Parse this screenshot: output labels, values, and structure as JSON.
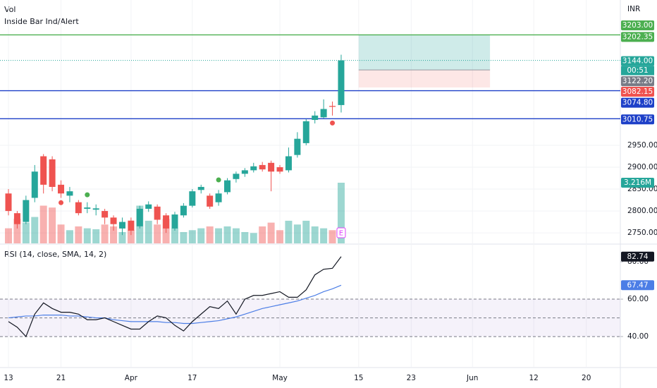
{
  "chart_data": {
    "type": "candlestick",
    "indicators": [
      "Vol",
      "Inside Bar Ind/Alert"
    ],
    "currency": "INR",
    "grid": true,
    "up_color": "#26a69a",
    "down_color": "#ef5350",
    "ylim": [
      2726,
      3282
    ],
    "yticks": [
      {
        "value": 2750,
        "label": "2750.00"
      },
      {
        "value": 2800,
        "label": "2800.00"
      },
      {
        "value": 2850,
        "label": "2850.00"
      },
      {
        "value": 2900,
        "label": "2900.00"
      },
      {
        "value": 2950,
        "label": "2950.00"
      }
    ],
    "xticks": [
      {
        "value": 0,
        "label": "13"
      },
      {
        "value": 6,
        "label": "21"
      },
      {
        "value": 14,
        "label": "Apr"
      },
      {
        "value": 21,
        "label": "17"
      },
      {
        "value": 31,
        "label": "May"
      },
      {
        "value": 40,
        "label": "15"
      },
      {
        "value": 46,
        "label": "23"
      },
      {
        "value": 53,
        "label": "Jun"
      },
      {
        "value": 60,
        "label": "12"
      },
      {
        "value": 66,
        "label": "20"
      }
    ],
    "open": [
      2840,
      2795,
      2775,
      2830,
      2925,
      2918,
      2860,
      2835,
      2820,
      2805,
      2803,
      2800,
      2785,
      2760,
      2778,
      2765,
      2805,
      2810,
      2790,
      2760,
      2790,
      2812,
      2848,
      2835,
      2820,
      2843,
      2873,
      2885,
      2893,
      2905,
      2910,
      2900,
      2893,
      2928,
      2955,
      3008,
      3014,
      3040,
      3042
    ],
    "high": [
      2850,
      2800,
      2835,
      2905,
      2930,
      2925,
      2870,
      2855,
      2825,
      2820,
      2815,
      2805,
      2790,
      2785,
      2785,
      2812,
      2822,
      2815,
      2795,
      2798,
      2818,
      2850,
      2860,
      2840,
      2848,
      2875,
      2890,
      2898,
      2910,
      2912,
      2915,
      2905,
      2945,
      2980,
      3010,
      3028,
      3055,
      3050,
      3157
    ],
    "low": [
      2790,
      2760,
      2770,
      2820,
      2840,
      2845,
      2830,
      2820,
      2790,
      2795,
      2790,
      2770,
      2755,
      2745,
      2745,
      2760,
      2798,
      2770,
      2750,
      2755,
      2785,
      2808,
      2840,
      2805,
      2812,
      2838,
      2865,
      2878,
      2888,
      2890,
      2845,
      2885,
      2888,
      2922,
      2950,
      3000,
      3012,
      3018,
      3025
    ],
    "close": [
      2800,
      2770,
      2825,
      2890,
      2860,
      2855,
      2840,
      2845,
      2795,
      2808,
      2806,
      2785,
      2770,
      2775,
      2755,
      2805,
      2815,
      2780,
      2760,
      2792,
      2812,
      2845,
      2855,
      2810,
      2840,
      2870,
      2885,
      2893,
      2902,
      2895,
      2890,
      2890,
      2925,
      2965,
      3005,
      3018,
      3033,
      3038,
      3144
    ],
    "volume": {
      "values": [
        800000,
        1300000,
        1100000,
        1400000,
        2000000,
        1900000,
        1000000,
        700000,
        900000,
        800000,
        750000,
        1000000,
        900000,
        600000,
        700000,
        2000000,
        1200000,
        1000000,
        1300000,
        800000,
        600000,
        700000,
        800000,
        900000,
        800000,
        900000,
        800000,
        600000,
        550000,
        900000,
        1100000,
        700000,
        1200000,
        1000000,
        1200000,
        900000,
        800000,
        700000,
        3216000
      ],
      "value_labels": [
        null,
        null,
        null,
        null,
        null,
        null,
        null,
        null,
        null,
        null,
        null,
        null,
        null,
        null,
        null,
        null,
        null,
        null,
        null,
        null,
        null,
        null,
        null,
        null,
        null,
        null,
        null,
        null,
        null,
        null,
        null,
        null,
        null,
        null,
        null,
        null,
        null,
        null,
        "3.216M"
      ]
    },
    "signals": [
      {
        "index": 6,
        "value": 2819,
        "color": "#ef5350"
      },
      {
        "index": 9,
        "value": 2837,
        "color": "#4caf50"
      },
      {
        "index": 24,
        "value": 2871,
        "color": "#4caf50"
      },
      {
        "index": 37,
        "value": 3001,
        "color": "#ef5350"
      }
    ],
    "event": {
      "index": 38,
      "label": "E"
    },
    "levels": [
      {
        "value": 3202.35,
        "label": "3202.35",
        "color": "#4caf50"
      },
      {
        "value": 3074.8,
        "label": "3074.80",
        "color": "#1e40c8"
      },
      {
        "value": 3010.75,
        "label": "3010.75",
        "color": "#1e40c8"
      }
    ],
    "last_price": {
      "value": 3144,
      "label": "3144.00",
      "countdown": "00:51"
    },
    "position": {
      "start_index": 40,
      "end_index": 55,
      "target": {
        "value": 3203,
        "label": "3203.00"
      },
      "entry": {
        "value": 3122.2,
        "label": "3122.20"
      },
      "stop": {
        "value": 3082.15,
        "label": "3082.15"
      }
    },
    "rsi": {
      "title": "RSI (14, close, SMA, 14, 2)",
      "ylim": [
        23.8,
        88.7
      ],
      "yticks": [
        {
          "value": 40,
          "label": "40.00"
        },
        {
          "value": 60,
          "label": "60.00"
        },
        {
          "value": 80,
          "label": "80.00"
        }
      ],
      "band": [
        40,
        60
      ],
      "midline": 50,
      "values": [
        48,
        45,
        40,
        52,
        58,
        55,
        53,
        53,
        52,
        49,
        49,
        50,
        48,
        46,
        44,
        44,
        48,
        51,
        50,
        46,
        43,
        48,
        52,
        56,
        55,
        59,
        52,
        60,
        62,
        62,
        63,
        64,
        61,
        61,
        65,
        73,
        76,
        76.5,
        82.74
      ],
      "sma": [
        50,
        50.5,
        51,
        51,
        51.5,
        51.5,
        51.5,
        51,
        51,
        50.5,
        50,
        50,
        49,
        48.5,
        48,
        48,
        48,
        48,
        47.5,
        47.5,
        47,
        47,
        47.5,
        48,
        48.5,
        49.5,
        50.5,
        52,
        53.5,
        55,
        56,
        57,
        58,
        59,
        60.5,
        62,
        64,
        65.5,
        67.47
      ],
      "last_label": "82.74",
      "sma_label": "67.47"
    }
  }
}
